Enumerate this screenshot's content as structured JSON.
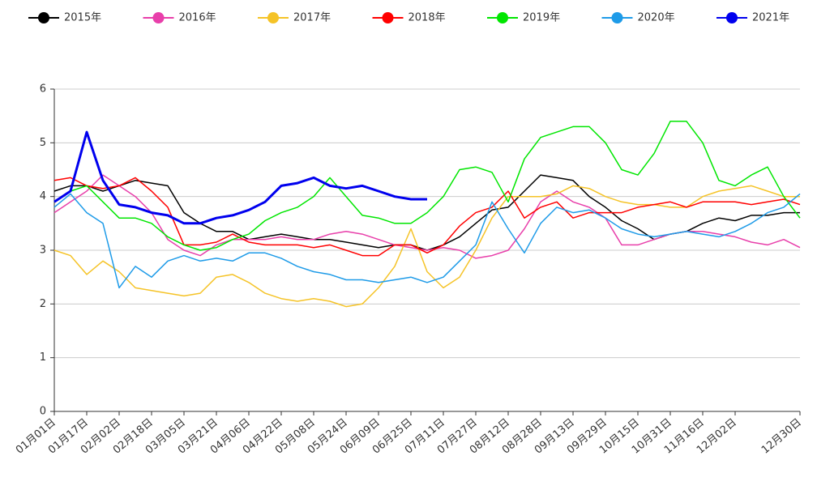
{
  "chart_data": {
    "type": "line",
    "categories": [
      "01月01日",
      null,
      "01月17日",
      null,
      "02月02日",
      null,
      "02月18日",
      null,
      "03月05日",
      null,
      "03月21日",
      null,
      "04月06日",
      null,
      "04月22日",
      null,
      "05月08日",
      null,
      "05月24日",
      null,
      "06月09日",
      null,
      "06月25日",
      null,
      "07月11日",
      null,
      "07月27日",
      null,
      "08月12日",
      null,
      "08月28日",
      null,
      "09月13日",
      null,
      "09月29日",
      null,
      "10月15日",
      null,
      "10月31日",
      null,
      "11月16日",
      null,
      "12月02日",
      null,
      null,
      null,
      "12月30日"
    ],
    "ylim": [
      0,
      6
    ],
    "yticks": [
      0,
      1,
      2,
      3,
      4,
      5,
      6
    ],
    "grid": true,
    "series": [
      {
        "name": "2015年",
        "color": "#000000",
        "values": [
          4.1,
          4.2,
          4.2,
          4.1,
          4.2,
          4.3,
          4.25,
          4.2,
          3.7,
          3.5,
          3.35,
          3.35,
          3.2,
          3.25,
          3.3,
          3.25,
          3.2,
          3.2,
          3.15,
          3.1,
          3.05,
          3.1,
          3.1,
          3.0,
          3.1,
          3.25,
          3.5,
          3.75,
          3.8,
          4.1,
          4.4,
          4.35,
          4.3,
          4.0,
          3.8,
          3.55,
          3.4,
          3.2,
          3.3,
          3.35,
          3.5,
          3.6,
          3.55,
          3.65,
          3.65,
          3.7,
          3.7
        ]
      },
      {
        "name": "2016年",
        "color": "#e83faa",
        "values": [
          3.7,
          3.9,
          4.1,
          4.4,
          4.2,
          4.0,
          3.7,
          3.2,
          3.0,
          2.9,
          3.1,
          3.2,
          3.2,
          3.2,
          3.25,
          3.2,
          3.2,
          3.3,
          3.35,
          3.3,
          3.2,
          3.1,
          3.05,
          3.0,
          3.05,
          3.0,
          2.85,
          2.9,
          3.0,
          3.4,
          3.9,
          4.1,
          3.9,
          3.8,
          3.6,
          3.1,
          3.1,
          3.2,
          3.3,
          3.35,
          3.35,
          3.3,
          3.25,
          3.15,
          3.1,
          3.2,
          3.05
        ]
      },
      {
        "name": "2017年",
        "color": "#f5c327",
        "values": [
          3.0,
          2.9,
          2.55,
          2.8,
          2.6,
          2.3,
          2.25,
          2.2,
          2.15,
          2.2,
          2.5,
          2.55,
          2.4,
          2.2,
          2.1,
          2.05,
          2.1,
          2.05,
          1.95,
          2.0,
          2.3,
          2.7,
          3.4,
          2.6,
          2.3,
          2.5,
          3.0,
          3.6,
          4.0,
          4.0,
          4.0,
          4.05,
          4.2,
          4.15,
          4.0,
          3.9,
          3.85,
          3.85,
          3.8,
          3.8,
          4.0,
          4.1,
          4.15,
          4.2,
          4.1,
          4.0,
          4.0
        ]
      },
      {
        "name": "2018年",
        "color": "#ff0000",
        "values": [
          4.3,
          4.35,
          4.2,
          4.15,
          4.2,
          4.35,
          4.1,
          3.8,
          3.1,
          3.1,
          3.15,
          3.3,
          3.15,
          3.1,
          3.1,
          3.1,
          3.05,
          3.1,
          3.0,
          2.9,
          2.9,
          3.1,
          3.1,
          2.95,
          3.1,
          3.45,
          3.7,
          3.8,
          4.1,
          3.6,
          3.8,
          3.9,
          3.6,
          3.7,
          3.7,
          3.7,
          3.8,
          3.85,
          3.9,
          3.8,
          3.9,
          3.9,
          3.9,
          3.85,
          3.9,
          3.95,
          3.85
        ]
      },
      {
        "name": "2019年",
        "color": "#00e600",
        "values": [
          3.9,
          4.1,
          4.2,
          3.9,
          3.6,
          3.6,
          3.5,
          3.25,
          3.1,
          3.0,
          3.05,
          3.2,
          3.3,
          3.55,
          3.7,
          3.8,
          4.0,
          4.35,
          4.0,
          3.65,
          3.6,
          3.5,
          3.5,
          3.7,
          4.0,
          4.5,
          4.55,
          4.45,
          3.9,
          4.7,
          5.1,
          5.2,
          5.3,
          5.3,
          5.0,
          4.5,
          4.4,
          4.8,
          5.4,
          5.4,
          5.0,
          4.3,
          4.2,
          4.4,
          4.55,
          4.0,
          3.6
        ]
      },
      {
        "name": "2020年",
        "color": "#1e9be8",
        "values": [
          3.8,
          4.05,
          3.7,
          3.5,
          2.3,
          2.7,
          2.5,
          2.8,
          2.9,
          2.8,
          2.85,
          2.8,
          2.95,
          2.95,
          2.85,
          2.7,
          2.6,
          2.55,
          2.45,
          2.45,
          2.4,
          2.45,
          2.5,
          2.4,
          2.5,
          2.8,
          3.1,
          3.9,
          3.4,
          2.95,
          3.5,
          3.8,
          3.7,
          3.75,
          3.6,
          3.4,
          3.3,
          3.25,
          3.3,
          3.35,
          3.3,
          3.25,
          3.35,
          3.5,
          3.7,
          3.8,
          4.05
        ]
      },
      {
        "name": "2021年",
        "color": "#0000ee",
        "values": [
          3.9,
          4.1,
          5.2,
          4.3,
          3.85,
          3.8,
          3.7,
          3.65,
          3.5,
          3.5,
          3.6,
          3.65,
          3.75,
          3.9,
          4.2,
          4.25,
          4.35,
          4.2,
          4.15,
          4.2,
          4.1,
          4.0,
          3.95,
          3.95,
          null,
          null,
          null,
          null,
          null,
          null,
          null,
          null,
          null,
          null,
          null,
          null,
          null,
          null,
          null,
          null,
          null,
          null,
          null,
          null,
          null,
          null,
          null
        ]
      }
    ]
  }
}
